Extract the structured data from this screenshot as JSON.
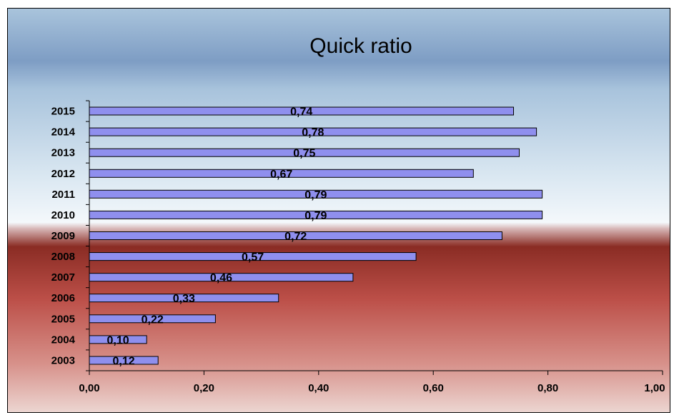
{
  "chart_data": {
    "type": "bar",
    "orientation": "horizontal",
    "title": "Quick ratio",
    "categories": [
      "2015",
      "2014",
      "2013",
      "2012",
      "2011",
      "2010",
      "2009",
      "2008",
      "2007",
      "2006",
      "2005",
      "2004",
      "2003"
    ],
    "values": [
      0.74,
      0.78,
      0.75,
      0.67,
      0.79,
      0.79,
      0.72,
      0.57,
      0.46,
      0.33,
      0.22,
      0.1,
      0.12
    ],
    "data_labels": [
      "0,74",
      "0,78",
      "0,75",
      "0,67",
      "0,79",
      "0,79",
      "0,72",
      "0,57",
      "0,46",
      "0,33",
      "0,22",
      "0,10",
      "0,12"
    ],
    "x_ticks": [
      0,
      0.2,
      0.4,
      0.6,
      0.8,
      1.0
    ],
    "x_tick_labels": [
      "0,00",
      "0,20",
      "0,40",
      "0,60",
      "0,80",
      "1,00"
    ],
    "xlim": [
      0,
      1.0
    ],
    "grid": false,
    "legend": "none",
    "bar_color": "#8f8fee"
  }
}
